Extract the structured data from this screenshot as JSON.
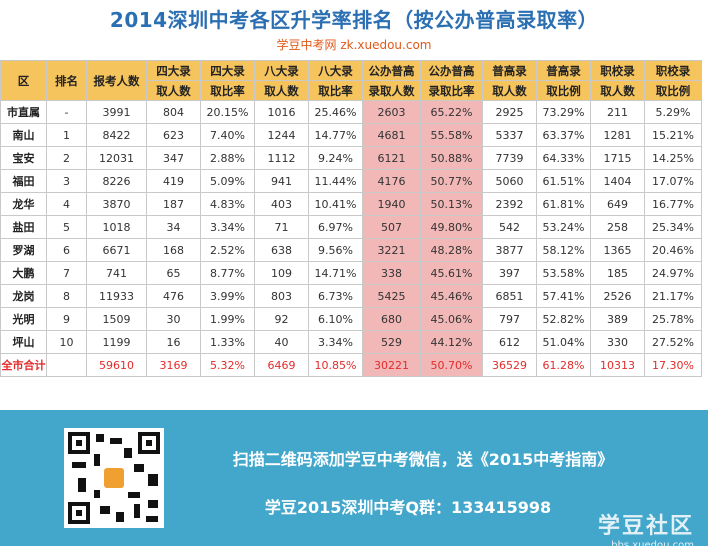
{
  "header": {
    "title": "2014深圳中考各区升学率排名（按公办普高录取率）",
    "subtitle": "学豆中考网 zk.xuedou.com"
  },
  "table": {
    "columns": [
      [
        "区"
      ],
      [
        "排名"
      ],
      [
        "报考人数"
      ],
      [
        "四大录",
        "取人数"
      ],
      [
        "四大录",
        "取比率"
      ],
      [
        "八大录",
        "取人数"
      ],
      [
        "八大录",
        "取比率"
      ],
      [
        "公办普高",
        "录取人数"
      ],
      [
        "公办普高",
        "录取比率"
      ],
      [
        "普高录",
        "取人数"
      ],
      [
        "普高录",
        "取比例"
      ],
      [
        "职校录",
        "取人数"
      ],
      [
        "职校录",
        "取比例"
      ]
    ],
    "rows": [
      [
        "市直属",
        "-",
        "3991",
        "804",
        "20.15%",
        "1016",
        "25.46%",
        "2603",
        "65.22%",
        "2925",
        "73.29%",
        "211",
        "5.29%"
      ],
      [
        "南山",
        "1",
        "8422",
        "623",
        "7.40%",
        "1244",
        "14.77%",
        "4681",
        "55.58%",
        "5337",
        "63.37%",
        "1281",
        "15.21%"
      ],
      [
        "宝安",
        "2",
        "12031",
        "347",
        "2.88%",
        "1112",
        "9.24%",
        "6121",
        "50.88%",
        "7739",
        "64.33%",
        "1715",
        "14.25%"
      ],
      [
        "福田",
        "3",
        "8226",
        "419",
        "5.09%",
        "941",
        "11.44%",
        "4176",
        "50.77%",
        "5060",
        "61.51%",
        "1404",
        "17.07%"
      ],
      [
        "龙华",
        "4",
        "3870",
        "187",
        "4.83%",
        "403",
        "10.41%",
        "1940",
        "50.13%",
        "2392",
        "61.81%",
        "649",
        "16.77%"
      ],
      [
        "盐田",
        "5",
        "1018",
        "34",
        "3.34%",
        "71",
        "6.97%",
        "507",
        "49.80%",
        "542",
        "53.24%",
        "258",
        "25.34%"
      ],
      [
        "罗湖",
        "6",
        "6671",
        "168",
        "2.52%",
        "638",
        "9.56%",
        "3221",
        "48.28%",
        "3877",
        "58.12%",
        "1365",
        "20.46%"
      ],
      [
        "大鹏",
        "7",
        "741",
        "65",
        "8.77%",
        "109",
        "14.71%",
        "338",
        "45.61%",
        "397",
        "53.58%",
        "185",
        "24.97%"
      ],
      [
        "龙岗",
        "8",
        "11933",
        "476",
        "3.99%",
        "803",
        "6.73%",
        "5425",
        "45.46%",
        "6851",
        "57.41%",
        "2526",
        "21.17%"
      ],
      [
        "光明",
        "9",
        "1509",
        "30",
        "1.99%",
        "92",
        "6.10%",
        "680",
        "45.06%",
        "797",
        "52.82%",
        "389",
        "25.78%"
      ],
      [
        "坪山",
        "10",
        "1199",
        "16",
        "1.33%",
        "40",
        "3.34%",
        "529",
        "44.12%",
        "612",
        "51.04%",
        "330",
        "27.52%"
      ]
    ],
    "total": [
      "全市合计",
      "",
      "59610",
      "3169",
      "5.32%",
      "6469",
      "10.85%",
      "30221",
      "50.70%",
      "36529",
      "61.28%",
      "10313",
      "17.30%"
    ]
  },
  "footer": {
    "promo_line1": "扫描二维码添加学豆中考微信，送《2015中考指南》",
    "promo_line2": "学豆2015深圳中考Q群：133415998",
    "brand_name": "学豆社区",
    "brand_url": "bbs.xuedou.com"
  },
  "colors": {
    "title": "#2b6fb3",
    "subtitle": "#e05a1a",
    "header_bg": "#f5c45c",
    "highlight_bg": "#f2b8b8",
    "total_text": "#e32b2b",
    "footer_bg": "#43a7cc"
  }
}
